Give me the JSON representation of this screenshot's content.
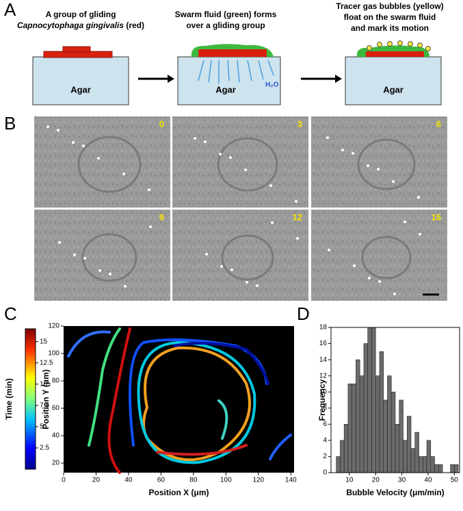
{
  "panel_a": {
    "label": "A",
    "steps": [
      {
        "caption": [
          "A group of gliding",
          "Capnocytophaga gingivalis",
          "(red)"
        ],
        "agar": "Agar"
      },
      {
        "caption": [
          "Swarm fluid (green) forms",
          "over a gliding group"
        ],
        "agar": "Agar",
        "water": "H₂O"
      },
      {
        "caption": [
          "Tracer gas bubbles (yellow)",
          "float on the swarm fluid",
          "and mark its motion"
        ],
        "agar": "Agar"
      }
    ]
  },
  "panel_b": {
    "label": "B",
    "frames": [
      "0",
      "3",
      "6",
      "9",
      "12",
      "15"
    ]
  },
  "chart_data": [
    {
      "type": "trajectory",
      "panel": "C",
      "x_label": "Position X (μm)",
      "y_label": "Position Y (μm)",
      "xlim": [
        0,
        142
      ],
      "ylim": [
        13,
        120
      ],
      "xticks": [
        0,
        20,
        40,
        60,
        80,
        100,
        120,
        140
      ],
      "yticks": [
        20,
        40,
        60,
        80,
        100,
        120
      ],
      "colorbar": {
        "label": "Time (min)",
        "lim": [
          0,
          16.5
        ],
        "ticks": [
          2.5,
          5,
          7.5,
          10,
          12.5,
          15
        ]
      }
    },
    {
      "type": "histogram",
      "panel": "D",
      "x_label": "Bubble Velocity (μm/min)",
      "y_label": "Frequency",
      "color": "#6b6b6b",
      "bins": [
        5,
        6.5,
        8,
        9.5,
        11,
        12.5,
        14,
        15.5,
        17,
        18.5,
        20,
        21.5,
        23,
        24.5,
        26,
        27.5,
        29,
        30.5,
        32,
        33.5,
        35,
        36.5,
        38,
        39.5,
        41,
        42.5,
        44,
        45.5,
        47,
        48.5,
        50,
        51.5
      ],
      "values": [
        2,
        4,
        6,
        11,
        11,
        14,
        12,
        16,
        18,
        18,
        12,
        15,
        9,
        12,
        10,
        6,
        9,
        4,
        7,
        3,
        5,
        2,
        2,
        4,
        2,
        1,
        1,
        0,
        0,
        1,
        1
      ],
      "xlim": [
        3,
        52
      ],
      "ylim": [
        0,
        18
      ],
      "xticks": [
        10,
        20,
        30,
        40,
        50
      ],
      "yticks": [
        0,
        2,
        4,
        6,
        8,
        10,
        12,
        14,
        16,
        18
      ]
    }
  ]
}
